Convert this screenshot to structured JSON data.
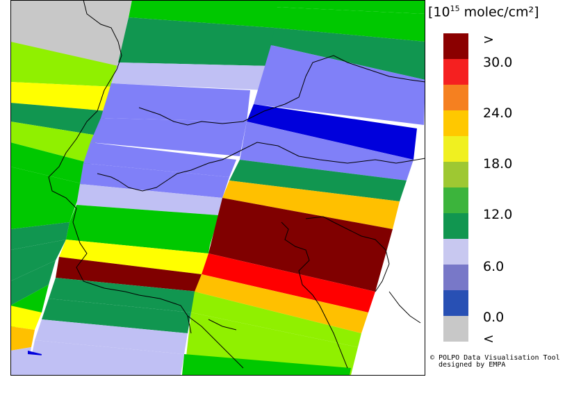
{
  "legend": {
    "title_pre": "[10",
    "title_sup": "15",
    "title_post": " molec/cm²]",
    "labels": [
      ">",
      "30.0",
      "24.0",
      "18.0",
      "12.0",
      "6.0",
      "0.0",
      "<"
    ],
    "colors": [
      "#8b0000",
      "#f52020",
      "#f58020",
      "#ffc800",
      "#f0f020",
      "#9ec832",
      "#3cb43c",
      "#119650",
      "#c8c8f0",
      "#7878c8",
      "#2850b4",
      "#c8c8c8"
    ]
  },
  "credit": {
    "line1": "© POLPO Data Visualisation Tool",
    "line2": "  designed by EMPA"
  },
  "map": {
    "colors": {
      "no_data": "#c8c8c8",
      "blue": "#0000dc",
      "lavender_light": "#c0c0f4",
      "lavender": "#8080f8",
      "dark_green": "#119650",
      "green": "#00c800",
      "light_green": "#90f000",
      "yellow": "#ffff00",
      "orange": "#ffc000",
      "red": "#ff0000",
      "dark_red": "#800000"
    }
  }
}
